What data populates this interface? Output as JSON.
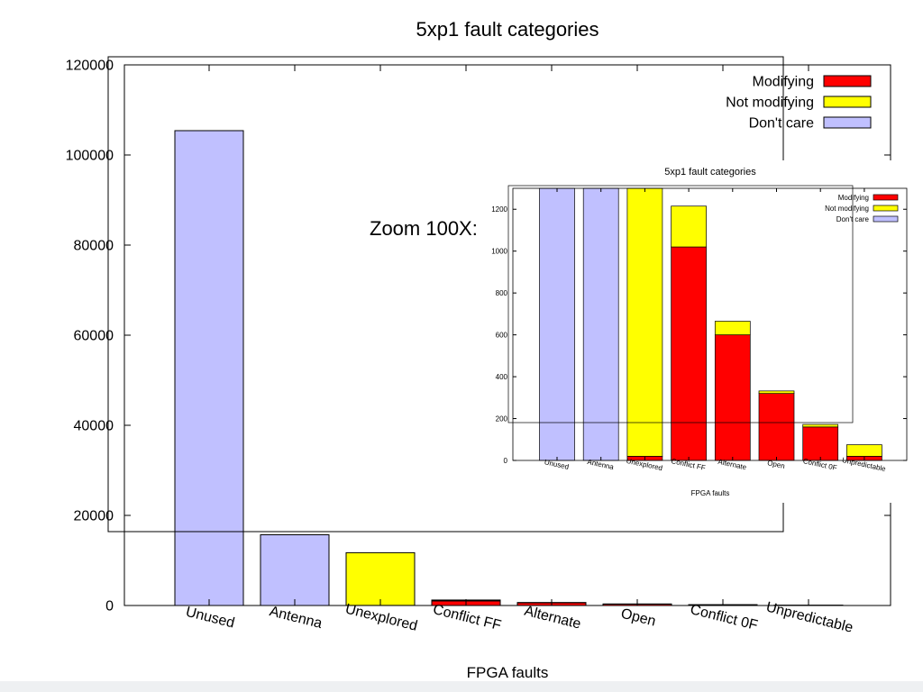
{
  "colors": {
    "modifying": "#ff0000",
    "not_modifying": "#ffff00",
    "dont_care": "#c0c0ff",
    "axis": "#000000"
  },
  "annotation": {
    "zoom_label": "Zoom 100X:"
  },
  "chart_data": [
    {
      "type": "bar",
      "stacked": true,
      "title": "5xp1 fault categories",
      "xlabel": "FPGA faults",
      "ylabel": "",
      "ylim": [
        0,
        120000
      ],
      "yticks": [
        "0",
        "20000",
        "40000",
        "60000",
        "80000",
        "100000",
        "120000"
      ],
      "grid": false,
      "legend_position": "top-right",
      "categories": [
        "Unused",
        "Antenna",
        "Unexplored",
        "Conflict FF",
        "Alternate",
        "Open",
        "Conflict 0F",
        "Unpredictable"
      ],
      "series": [
        {
          "name": "Modifying",
          "color": "#ff0000",
          "values": [
            0,
            0,
            20,
            1020,
            600,
            320,
            160,
            20
          ]
        },
        {
          "name": "Not modifying",
          "color": "#ffff00",
          "values": [
            0,
            0,
            11700,
            195,
            65,
            12,
            12,
            55
          ]
        },
        {
          "name": "Don't care",
          "color": "#c0c0ff",
          "values": [
            105400,
            15700,
            0,
            0,
            0,
            0,
            0,
            0
          ]
        }
      ]
    },
    {
      "type": "bar",
      "stacked": true,
      "title": "5xp1 fault categories",
      "xlabel": "FPGA faults",
      "ylabel": "",
      "ylim": [
        0,
        1300
      ],
      "yticks": [
        "0",
        "200",
        "400",
        "600",
        "800",
        "1000",
        "1200"
      ],
      "grid": false,
      "legend_position": "top-right",
      "categories": [
        "Unused",
        "Antenna",
        "Unexplored",
        "Conflict FF",
        "Alternate",
        "Open",
        "Conflict 0F",
        "Unpredictable"
      ],
      "series": [
        {
          "name": "Modifying",
          "color": "#ff0000",
          "values": [
            0,
            0,
            20,
            1020,
            600,
            320,
            160,
            20
          ]
        },
        {
          "name": "Not modifying",
          "color": "#ffff00",
          "values": [
            0,
            0,
            1280,
            195,
            65,
            12,
            12,
            55
          ]
        },
        {
          "name": "Don't care",
          "color": "#c0c0ff",
          "values": [
            1300,
            1300,
            0,
            0,
            0,
            0,
            0,
            0
          ]
        }
      ]
    }
  ]
}
